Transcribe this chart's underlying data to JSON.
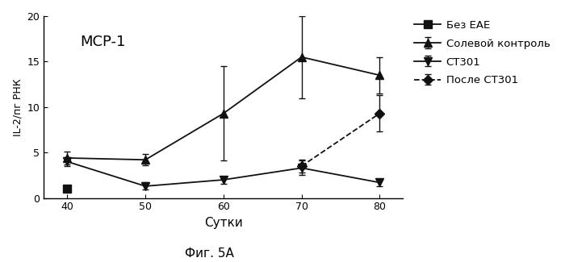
{
  "title_inset": "MCP-1",
  "xlabel": "Сутки",
  "ylabel": "IL-2/пг РНК",
  "caption": "Фиг. 5А",
  "xlim": [
    37,
    83
  ],
  "ylim": [
    0,
    20
  ],
  "xticks": [
    40,
    50,
    60,
    70,
    80
  ],
  "yticks": [
    0,
    5,
    10,
    15,
    20
  ],
  "x": [
    40,
    50,
    60,
    70,
    80
  ],
  "series": [
    {
      "label": "Без ЕАЕ",
      "y": [
        1.0,
        null,
        null,
        null,
        null
      ],
      "yerr": [
        null,
        null,
        null,
        null,
        null
      ],
      "marker": "s",
      "linestyle": "-",
      "color": "#111111",
      "markersize": 7
    },
    {
      "label": "Солевой контроль",
      "y": [
        4.4,
        4.2,
        9.3,
        15.5,
        13.5
      ],
      "yerr": [
        0.7,
        0.6,
        5.2,
        4.5,
        2.0
      ],
      "marker": "^",
      "linestyle": "-",
      "color": "#111111",
      "markersize": 7
    },
    {
      "label": "СТ301",
      "y": [
        4.0,
        1.3,
        2.0,
        3.3,
        1.7
      ],
      "yerr": [
        0.5,
        0.4,
        0.4,
        0.8,
        0.4
      ],
      "marker": "v",
      "linestyle": "-",
      "color": "#111111",
      "markersize": 7
    },
    {
      "label": "После СТ301",
      "y": [
        null,
        null,
        null,
        3.5,
        9.3
      ],
      "yerr": [
        null,
        null,
        null,
        0.7,
        2.0
      ],
      "marker": "D",
      "linestyle": "--",
      "color": "#111111",
      "markersize": 6
    }
  ]
}
